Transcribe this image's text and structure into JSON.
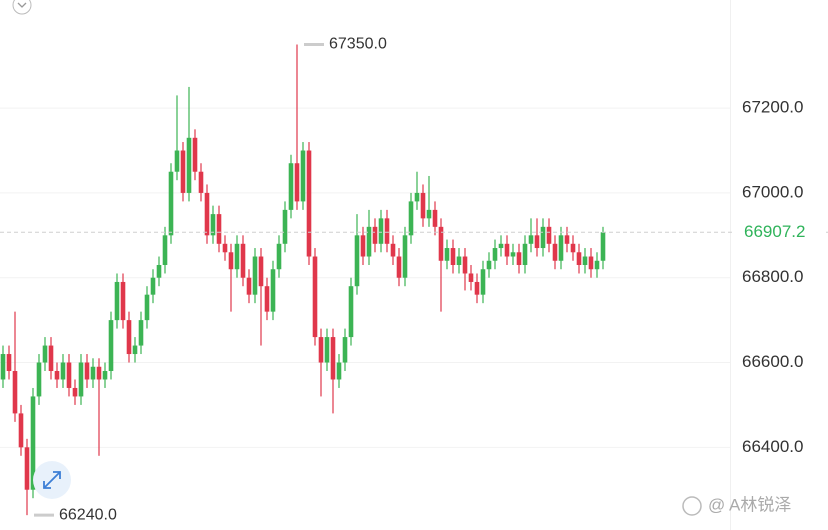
{
  "chart_data": {
    "type": "candlestick",
    "up_color": "#3cb454",
    "down_color": "#e0374b",
    "grid": true,
    "ylim": [
      66205,
      67455
    ],
    "yticks": [
      {
        "value": 66400,
        "label": "66400.0"
      },
      {
        "value": 66600,
        "label": "66600.0"
      },
      {
        "value": 66800,
        "label": "66800.0"
      },
      {
        "value": 67000,
        "label": "67000.0"
      },
      {
        "value": 67200,
        "label": "67200.0"
      }
    ],
    "open": [
      66560,
      66620,
      66580,
      66480,
      66400,
      66300,
      66520,
      66600,
      66640,
      66580,
      66560,
      66600,
      66540,
      66520,
      66600,
      66560,
      66590,
      66560,
      66580,
      66700,
      66790,
      66700,
      66620,
      66640,
      66700,
      66760,
      66800,
      66830,
      66900,
      67050,
      67100,
      67000,
      67130,
      67050,
      67000,
      66900,
      66950,
      66880,
      66860,
      66820,
      66880,
      66800,
      66760,
      66850,
      66780,
      66720,
      66820,
      66880,
      66960,
      67070,
      66980,
      67100,
      66850,
      66660,
      66600,
      66660,
      66560,
      66600,
      66660,
      66780,
      66900,
      66850,
      66920,
      66880,
      66940,
      66880,
      66850,
      66800,
      66900,
      66980,
      67000,
      66940,
      66960,
      66920,
      66840,
      66870,
      66830,
      66850,
      66810,
      66790,
      66760,
      66820,
      66840,
      66870,
      66880,
      66850,
      66860,
      66830,
      66880,
      66900,
      66870,
      66920,
      66880,
      66840,
      66900,
      66880,
      66860,
      66830,
      66850,
      66820,
      66840
    ],
    "high": [
      66640,
      66640,
      66720,
      66500,
      66420,
      66540,
      66620,
      66660,
      66660,
      66600,
      66620,
      66620,
      66560,
      66620,
      66620,
      66610,
      66610,
      66600,
      66720,
      66810,
      66810,
      66720,
      66660,
      66720,
      66780,
      66820,
      66850,
      66920,
      67070,
      67230,
      67120,
      67250,
      67150,
      67070,
      67020,
      66970,
      66970,
      66900,
      66880,
      66900,
      66900,
      66820,
      66870,
      66870,
      66800,
      66840,
      66900,
      66980,
      67090,
      67350,
      67120,
      67120,
      66870,
      66680,
      66680,
      66680,
      66620,
      66680,
      66800,
      66950,
      66920,
      66960,
      66940,
      66960,
      66960,
      66900,
      66870,
      66920,
      67000,
      67050,
      67020,
      67040,
      66980,
      66940,
      66890,
      66890,
      66870,
      66870,
      66830,
      66810,
      66840,
      66860,
      66890,
      66900,
      66900,
      66880,
      66880,
      66900,
      66940,
      66940,
      66940,
      66940,
      66900,
      66920,
      66920,
      66900,
      66880,
      66870,
      66870,
      66860,
      66920
    ],
    "low": [
      66540,
      66560,
      66460,
      66380,
      66240,
      66280,
      66500,
      66580,
      66560,
      66540,
      66540,
      66520,
      66500,
      66500,
      66540,
      66540,
      66380,
      66540,
      66560,
      66680,
      66680,
      66600,
      66600,
      66620,
      66680,
      66740,
      66780,
      66810,
      66880,
      67030,
      66980,
      66980,
      67030,
      66980,
      66880,
      66880,
      66860,
      66840,
      66720,
      66800,
      66780,
      66740,
      66740,
      66640,
      66700,
      66700,
      66800,
      66860,
      66940,
      66960,
      66960,
      66830,
      66640,
      66520,
      66580,
      66480,
      66540,
      66580,
      66640,
      66760,
      66830,
      66830,
      66860,
      66860,
      66860,
      66830,
      66780,
      66780,
      66880,
      66960,
      66920,
      66920,
      66900,
      66720,
      66820,
      66810,
      66810,
      66770,
      66770,
      66740,
      66740,
      66800,
      66820,
      66850,
      66830,
      66830,
      66810,
      66810,
      66860,
      66850,
      66850,
      66860,
      66820,
      66820,
      66860,
      66840,
      66810,
      66810,
      66800,
      66800,
      66820
    ],
    "close": [
      66620,
      66580,
      66480,
      66400,
      66300,
      66520,
      66600,
      66640,
      66580,
      66560,
      66600,
      66540,
      66520,
      66600,
      66560,
      66590,
      66560,
      66580,
      66700,
      66790,
      66700,
      66620,
      66640,
      66700,
      66760,
      66800,
      66830,
      66900,
      67050,
      67100,
      67000,
      67130,
      67050,
      67000,
      66900,
      66950,
      66880,
      66860,
      66820,
      66880,
      66800,
      66760,
      66850,
      66780,
      66720,
      66820,
      66880,
      66960,
      67070,
      66980,
      67100,
      66850,
      66660,
      66600,
      66660,
      66560,
      66600,
      66660,
      66780,
      66900,
      66850,
      66920,
      66880,
      66940,
      66880,
      66850,
      66800,
      66900,
      66980,
      67000,
      66940,
      66960,
      66920,
      66840,
      66870,
      66830,
      66850,
      66810,
      66790,
      66760,
      66820,
      66840,
      66870,
      66880,
      66850,
      66860,
      66830,
      66880,
      66900,
      66870,
      66920,
      66880,
      66840,
      66900,
      66880,
      66860,
      66830,
      66850,
      66820,
      66840,
      66907.2
    ],
    "max_label": {
      "value": 67350,
      "label": "67350.0"
    },
    "min_label": {
      "value": 66240,
      "label": "66240.0"
    },
    "last_price": {
      "value": 66907.2,
      "label": "66907.2",
      "color": "#2fb35a"
    },
    "watermark": "@ A林锐泽"
  }
}
